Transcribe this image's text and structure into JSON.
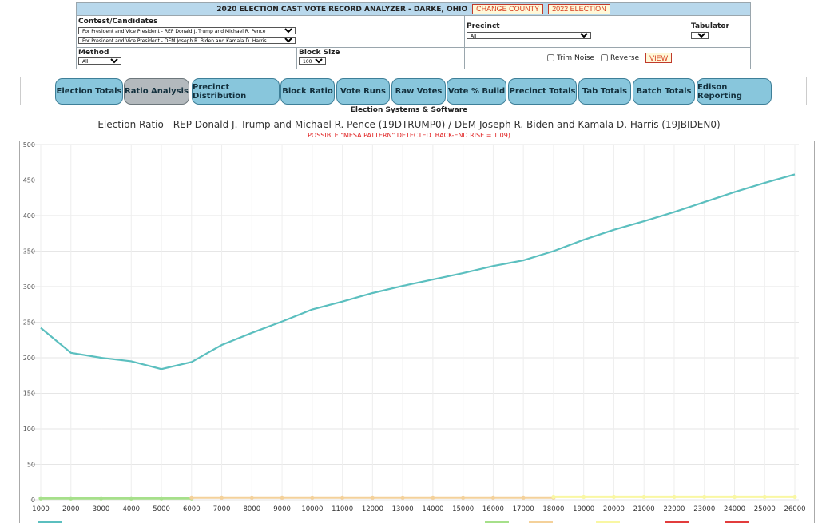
{
  "header": {
    "title": "2020 ELECTION CAST VOTE RECORD ANALYZER - DARKE, OHIO",
    "change_county": "CHANGE COUNTY",
    "other_election": "2022 ELECTION"
  },
  "form": {
    "contest_label": "Contest/Candidates",
    "contest_value_1": "For President and Vice President - REP Donald J. Trump and Michael R. Pence",
    "contest_value_2": "For President and Vice President - DEM Joseph R. Biden and Kamala D. Harris",
    "precinct_label": "Precinct",
    "precinct_value": "All",
    "tabulator_label": "Tabulator",
    "tabulator_value": "All",
    "method_label": "Method",
    "method_value": "All",
    "blocksize_label": "Block Size",
    "blocksize_value": "1000",
    "trim_noise": "Trim Noise",
    "reverse": "Reverse",
    "view": "VIEW"
  },
  "tabs": [
    {
      "label": "Election Totals",
      "active": false
    },
    {
      "label": "Ratio Analysis",
      "active": true
    },
    {
      "label": "Precinct Distribution",
      "active": false
    },
    {
      "label": "Block Ratio",
      "active": false
    },
    {
      "label": "Vote Runs",
      "active": false
    },
    {
      "label": "Raw Votes",
      "active": false
    },
    {
      "label": "Vote % Build",
      "active": false
    },
    {
      "label": "Precinct Totals",
      "active": false
    },
    {
      "label": "Tab Totals",
      "active": false
    },
    {
      "label": "Batch Totals",
      "active": false
    },
    {
      "label": "Edison Reporting",
      "active": false
    }
  ],
  "vendor": "Election Systems & Software",
  "chart_data": {
    "type": "line",
    "title": "Election Ratio - REP Donald J. Trump and Michael R. Pence (19DTRUMP0) / DEM Joseph R. Biden and Kamala D. Harris (19JBIDEN0)",
    "subtitle": "POSSIBLE \"MESA PATTERN\" DETECTED. BACK-END RISE = 1.09)",
    "ylim": [
      0,
      500
    ],
    "yticks": [
      0,
      50,
      100,
      150,
      200,
      250,
      300,
      350,
      400,
      450,
      500
    ],
    "x": [
      1000,
      2000,
      3000,
      4000,
      5000,
      6000,
      7000,
      8000,
      9000,
      10000,
      11000,
      12000,
      13000,
      14000,
      15000,
      16000,
      17000,
      18000,
      19000,
      20000,
      21000,
      22000,
      23000,
      24000,
      25000,
      26000
    ],
    "grid": true,
    "series": [
      {
        "name": "",
        "color": "#5bbfbf",
        "values": [
          242,
          207,
          200,
          195,
          184,
          194,
          218,
          235,
          251,
          268,
          279,
          291,
          301,
          310,
          319,
          329,
          337,
          350,
          366,
          380,
          392,
          405,
          419,
          433,
          446,
          458
        ]
      },
      {
        "name": "",
        "color": "#a6e08a",
        "values": [
          2,
          2,
          2,
          2,
          2,
          2,
          null,
          null,
          null,
          null,
          null,
          null,
          null,
          null,
          null,
          null,
          null,
          null,
          null,
          null,
          null,
          null,
          null,
          null,
          null,
          null
        ]
      },
      {
        "name": "",
        "color": "#f4d19a",
        "values": [
          null,
          null,
          null,
          null,
          null,
          3,
          3,
          3,
          3,
          3,
          3,
          3,
          3,
          3,
          3,
          3,
          3,
          3,
          null,
          null,
          null,
          null,
          null,
          null,
          null,
          null
        ]
      },
      {
        "name": "",
        "color": "#f9f7a3",
        "values": [
          null,
          null,
          null,
          null,
          null,
          null,
          null,
          null,
          null,
          null,
          null,
          null,
          null,
          null,
          null,
          null,
          null,
          4,
          4,
          4,
          4,
          4,
          4,
          4,
          4,
          4
        ]
      }
    ]
  }
}
